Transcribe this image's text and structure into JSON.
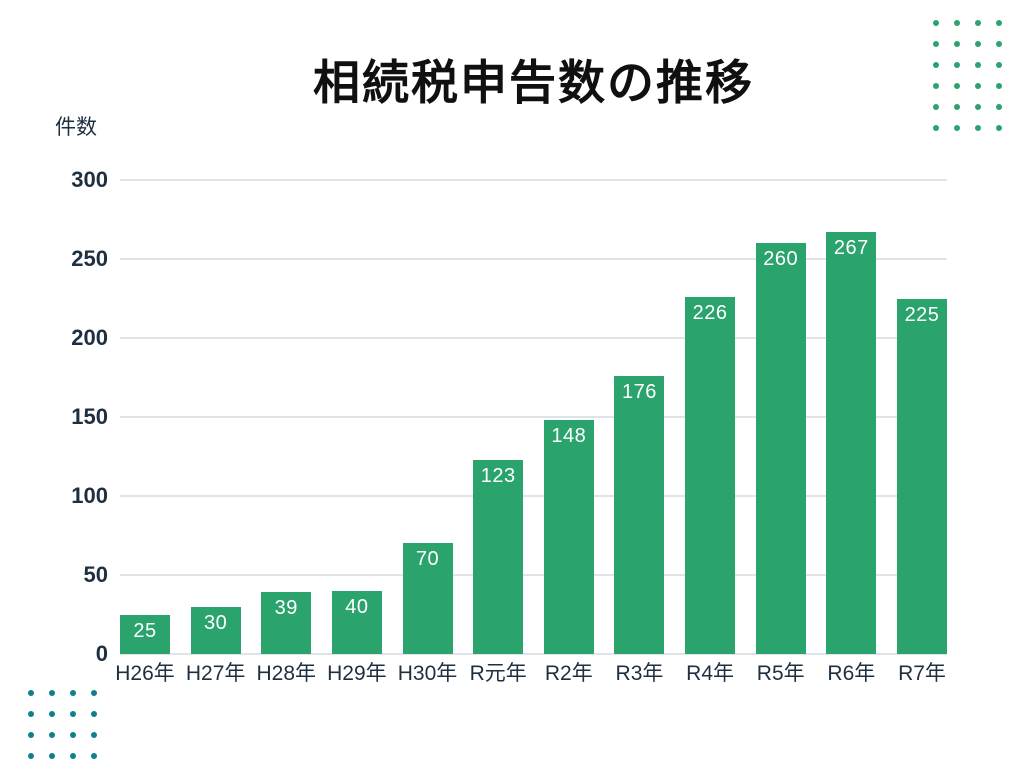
{
  "title": "相続税申告数の推移",
  "y_axis_unit": "件数",
  "chart_data": {
    "type": "bar",
    "title": "相続税申告数の推移",
    "ylabel": "件数",
    "xlabel": "",
    "categories": [
      "H26年",
      "H27年",
      "H28年",
      "H29年",
      "H30年",
      "R元年",
      "R2年",
      "R3年",
      "R4年",
      "R5年",
      "R6年",
      "R7年"
    ],
    "values": [
      25,
      30,
      39,
      40,
      70,
      123,
      148,
      176,
      226,
      260,
      267,
      225
    ],
    "ylim": [
      0,
      300
    ],
    "yticks": [
      0,
      50,
      100,
      150,
      200,
      250,
      300
    ],
    "grid": true,
    "legend": "none",
    "value_labels_position": "inside-top",
    "colors": {
      "bar": "#2aa36d",
      "value_label": "#ffffff",
      "gridline": "#e0e4e8",
      "axis_text": "#1e2f42",
      "title_text": "#101010",
      "background": "#ffffff"
    }
  },
  "decor": {
    "top_right_dots": {
      "rows": 6,
      "cols": 4,
      "color": "#2aa36d"
    },
    "bottom_left_dots": {
      "rows": 4,
      "cols": 4,
      "color": "#0e808d"
    }
  }
}
